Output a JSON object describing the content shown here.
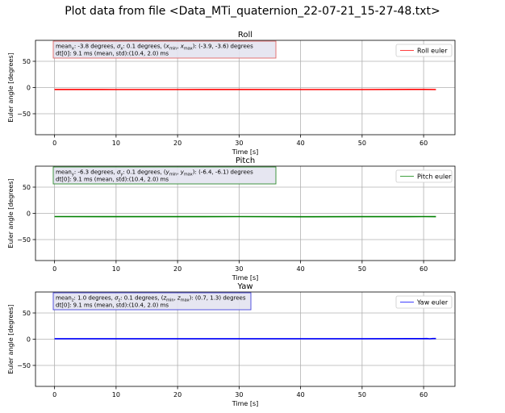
{
  "figure_title": "Plot data from file <Data_MTi_quaternion_22-07-21_15-27-48.txt>",
  "chart_data": [
    {
      "type": "line",
      "title": "Roll",
      "xlabel": "Time [s]",
      "ylabel": "Euler angle [degrees]",
      "xlim": [
        -3.1,
        65.1
      ],
      "ylim": [
        -90,
        90
      ],
      "xticks": [
        0,
        10,
        20,
        30,
        40,
        50,
        60
      ],
      "yticks": [
        -50,
        0,
        50
      ],
      "grid": true,
      "legend_position": "top-right",
      "color": "#ff0000",
      "box_border": "#e06666",
      "series": [
        {
          "name": "Roll euler",
          "x": [
            0,
            10,
            20,
            30,
            40,
            50,
            60,
            62
          ],
          "y": [
            -3.7,
            -3.8,
            -3.8,
            -3.7,
            -3.9,
            -3.8,
            -3.6,
            -3.8
          ]
        }
      ],
      "annotation": {
        "sym": "x",
        "line1_value": ": -3.8 degrees, ",
        "line1_sigma_value": ": 0.1 degrees, (",
        "line1_range": "): (-3.9, -3.6) degrees",
        "line2": "dt[0]: 9.1 ms (mean, std):(10.4, 2.0) ms"
      }
    },
    {
      "type": "line",
      "title": "Pitch",
      "xlabel": "Time [s]",
      "ylabel": "Euler angle [degrees]",
      "xlim": [
        -3.1,
        65.1
      ],
      "ylim": [
        -90,
        90
      ],
      "xticks": [
        0,
        10,
        20,
        30,
        40,
        50,
        60
      ],
      "yticks": [
        -50,
        0,
        50
      ],
      "grid": true,
      "legend_position": "top-right",
      "color": "#008000",
      "box_border": "#2e8b2e",
      "series": [
        {
          "name": "Pitch euler",
          "x": [
            0,
            10,
            20,
            30,
            40,
            50,
            60,
            62
          ],
          "y": [
            -6.2,
            -6.3,
            -6.3,
            -6.2,
            -6.4,
            -6.3,
            -6.1,
            -6.3
          ]
        }
      ],
      "annotation": {
        "sym": "y",
        "line1_value": ": -6.3 degrees, ",
        "line1_sigma_value": ": 0.1 degrees, (",
        "line1_range": "): (-6.4, -6.1) degrees",
        "line2": "dt[0]: 9.1 ms (mean, std):(10.4, 2.0) ms"
      }
    },
    {
      "type": "line",
      "title": "Yaw",
      "xlabel": "Time [s]",
      "ylabel": "Euler angle [degrees]",
      "xlim": [
        -3.1,
        65.1
      ],
      "ylim": [
        -90,
        90
      ],
      "xticks": [
        0,
        10,
        20,
        30,
        40,
        50,
        60
      ],
      "yticks": [
        -50,
        0,
        50
      ],
      "grid": true,
      "legend_position": "top-right",
      "color": "#0000ff",
      "box_border": "#4444dd",
      "series": [
        {
          "name": "Yaw euler",
          "x": [
            0,
            10,
            20,
            30,
            40,
            50,
            60,
            60.5,
            61,
            61.5,
            62
          ],
          "y": [
            0.9,
            1.0,
            1.0,
            0.9,
            1.0,
            1.0,
            1.1,
            1.3,
            0.7,
            1.3,
            1.2
          ]
        }
      ],
      "annotation": {
        "sym": "z",
        "line1_value": ": 1.0 degrees, ",
        "line1_sigma_value": ": 0.1 degrees, (",
        "line1_range": "): (0.7, 1.3) degrees",
        "line2": "dt[0]: 9.1 ms (mean, std):(10.4, 2.0) ms"
      }
    }
  ]
}
